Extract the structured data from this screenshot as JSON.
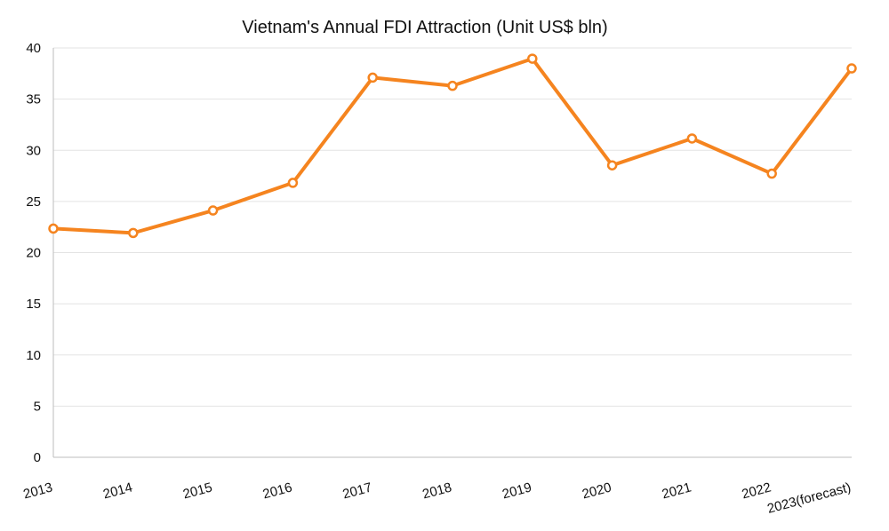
{
  "chart_data": {
    "type": "line",
    "title": "Vietnam's Annual FDI Attraction (Unit US$ bln)",
    "xlabel": "",
    "ylabel": "",
    "ylim": [
      0,
      40
    ],
    "yticks": [
      "0",
      "5",
      "10",
      "15",
      "20",
      "25",
      "30",
      "35",
      "40"
    ],
    "grid": true,
    "legend": "none",
    "categories": [
      "2013",
      "2014",
      "2015",
      "2016",
      "2017",
      "2018",
      "2019",
      "2020",
      "2021",
      "2022",
      "2023(forecast)"
    ],
    "series": [
      {
        "name": "FDI",
        "color": "#f5841f",
        "values": [
          22.35,
          21.92,
          24.12,
          26.82,
          37.1,
          36.3,
          38.95,
          28.53,
          31.15,
          27.72,
          38.0
        ]
      }
    ]
  }
}
